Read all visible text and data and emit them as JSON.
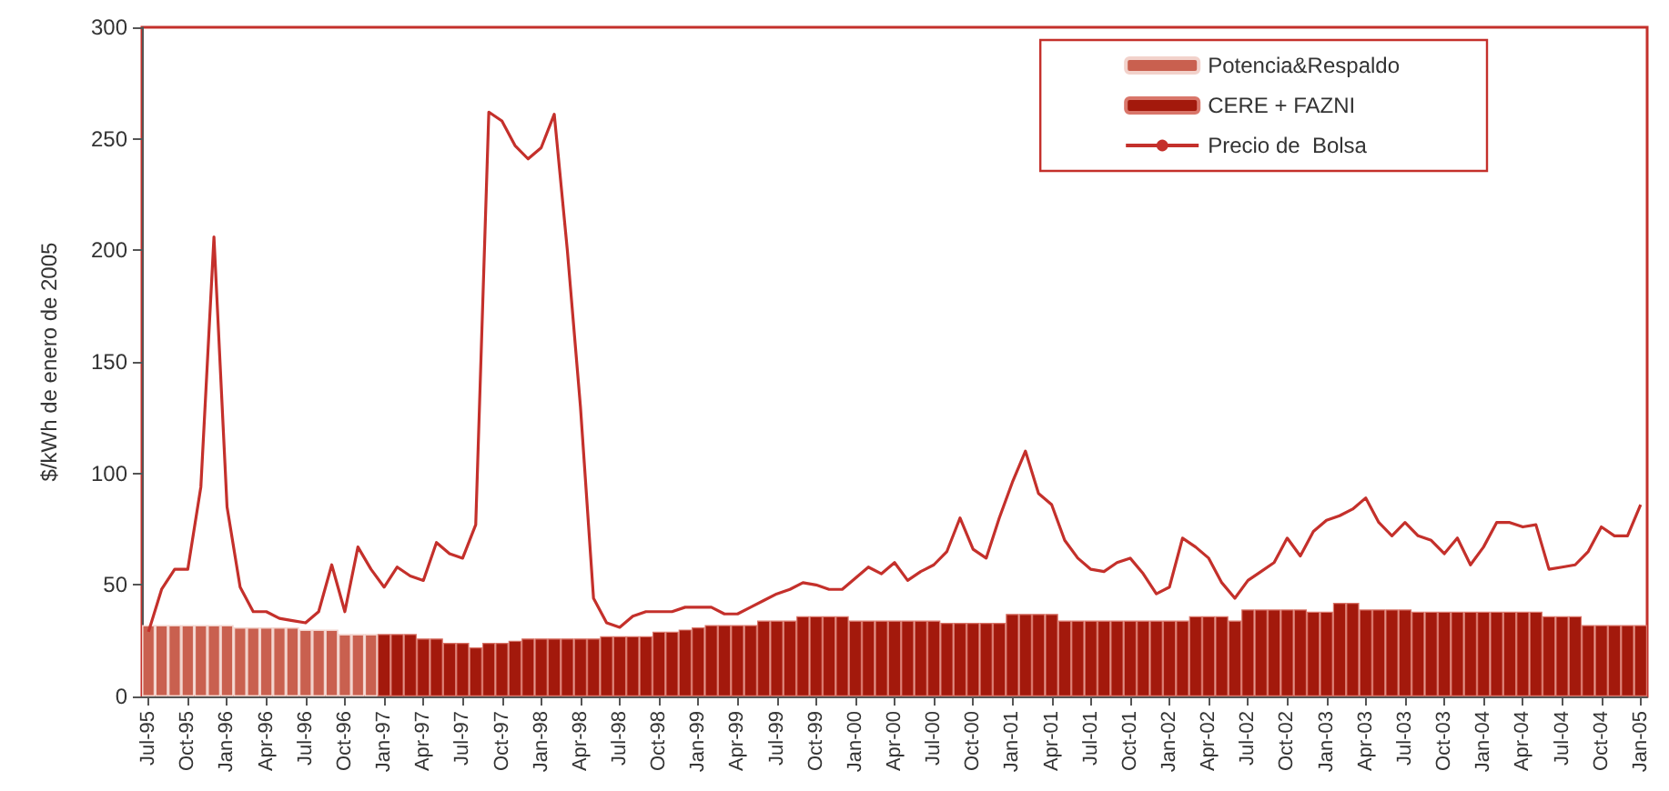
{
  "chart_data": {
    "type": "bar",
    "ylabel": "$/kWh de enero de 2005",
    "categories": [
      "Jul-95",
      null,
      null,
      "Oct-95",
      null,
      null,
      "Jan-96",
      null,
      null,
      "Apr-96",
      null,
      null,
      "Jul-96",
      null,
      null,
      "Oct-96",
      null,
      null,
      "Jan-97",
      null,
      null,
      "Apr-97",
      null,
      null,
      "Jul-97",
      null,
      null,
      "Oct-97",
      null,
      null,
      "Jan-98",
      null,
      null,
      "Apr-98",
      null,
      null,
      "Jul-98",
      null,
      null,
      "Oct-98",
      null,
      null,
      "Jan-99",
      null,
      null,
      "Apr-99",
      null,
      null,
      "Jul-99",
      null,
      null,
      "Oct-99",
      null,
      null,
      "Jan-00",
      null,
      null,
      "Apr-00",
      null,
      null,
      "Jul-00",
      null,
      null,
      "Oct-00",
      null,
      null,
      "Jan-01",
      null,
      null,
      "Apr-01",
      null,
      null,
      "Jul-01",
      null,
      null,
      "Oct-01",
      null,
      null,
      "Jan-02",
      null,
      null,
      "Apr-02",
      null,
      null,
      "Jul-02",
      null,
      null,
      "Oct-02",
      null,
      null,
      "Jan-03",
      null,
      null,
      "Apr-03",
      null,
      null,
      "Jul-03",
      null,
      null,
      "Oct-03",
      null,
      null,
      "Jan-04",
      null,
      null,
      "Apr-04",
      null,
      null,
      "Jul-04",
      null,
      null,
      "Oct-04",
      null,
      null,
      "Jan-05"
    ],
    "stacked": true,
    "series": [
      {
        "name": "Potencia&Respaldo",
        "color": "#c9604f",
        "values": [
          32,
          32,
          32,
          32,
          32,
          32,
          32,
          31,
          31,
          31,
          31,
          31,
          30,
          30,
          30,
          28,
          28,
          28,
          null,
          null,
          null,
          null,
          null,
          null,
          null,
          null,
          null,
          null,
          null,
          null,
          null,
          null,
          null,
          null,
          null,
          null,
          null,
          null,
          null,
          null,
          null,
          null,
          null,
          null,
          null,
          null,
          null,
          null,
          null,
          null,
          null,
          null,
          null,
          null,
          null,
          null,
          null,
          null,
          null,
          null,
          null,
          null,
          null,
          null,
          null,
          null,
          null,
          null,
          null,
          null,
          null,
          null,
          null,
          null,
          null,
          null,
          null,
          null,
          null,
          null,
          null,
          null,
          null,
          null,
          null,
          null,
          null,
          null,
          null,
          null,
          null,
          null,
          null,
          null,
          null,
          null,
          null,
          null,
          null,
          null,
          null,
          null,
          null,
          null,
          null,
          null,
          null,
          null,
          null,
          null,
          null,
          null,
          null,
          null,
          null
        ]
      },
      {
        "name": "CERE + FAZNI",
        "color": "#a3190c",
        "values": [
          null,
          null,
          null,
          null,
          null,
          null,
          null,
          null,
          null,
          null,
          null,
          null,
          null,
          null,
          null,
          null,
          null,
          null,
          28,
          28,
          28,
          26,
          26,
          24,
          24,
          22,
          24,
          24,
          25,
          26,
          26,
          26,
          26,
          26,
          26,
          27,
          27,
          27,
          27,
          29,
          29,
          30,
          31,
          32,
          32,
          32,
          32,
          34,
          34,
          34,
          36,
          36,
          36,
          36,
          34,
          34,
          34,
          34,
          34,
          34,
          34,
          33,
          33,
          33,
          33,
          33,
          37,
          37,
          37,
          37,
          34,
          34,
          34,
          34,
          34,
          34,
          34,
          34,
          34,
          34,
          36,
          36,
          36,
          34,
          39,
          39,
          39,
          39,
          39,
          38,
          38,
          42,
          42,
          39,
          39,
          39,
          39,
          38,
          38,
          38,
          38,
          38,
          38,
          38,
          38,
          38,
          38,
          36,
          36,
          36,
          32,
          32,
          32,
          32,
          32
        ]
      },
      {
        "name": "Precio de  Bolsa",
        "type": "line",
        "color": "#c4302b",
        "values": [
          29,
          48,
          57,
          57,
          94,
          206,
          85,
          49,
          38,
          38,
          35,
          34,
          33,
          38,
          59,
          38,
          67,
          57,
          49,
          58,
          54,
          52,
          69,
          64,
          62,
          77,
          262,
          258,
          247,
          241,
          246,
          261,
          200,
          130,
          44,
          33,
          31,
          36,
          38,
          38,
          38,
          40,
          40,
          40,
          37,
          37,
          40,
          43,
          46,
          48,
          51,
          50,
          48,
          48,
          53,
          58,
          55,
          60,
          52,
          56,
          59,
          65,
          80,
          66,
          62,
          80,
          96,
          110,
          91,
          86,
          70,
          62,
          57,
          56,
          60,
          62,
          55,
          46,
          49,
          71,
          67,
          62,
          51,
          44,
          52,
          56,
          60,
          71,
          63,
          74,
          79,
          81,
          84,
          89,
          78,
          72,
          78,
          72,
          70,
          64,
          71,
          59,
          67,
          78,
          78,
          76,
          77,
          57,
          58,
          59,
          65,
          76,
          72,
          72,
          86
        ]
      }
    ],
    "ylim": [
      0,
      300
    ],
    "yticks": [
      0,
      50,
      100,
      150,
      200,
      250,
      300
    ],
    "grid": false,
    "legend": "top right",
    "marker": "none",
    "line_style": "solid"
  }
}
